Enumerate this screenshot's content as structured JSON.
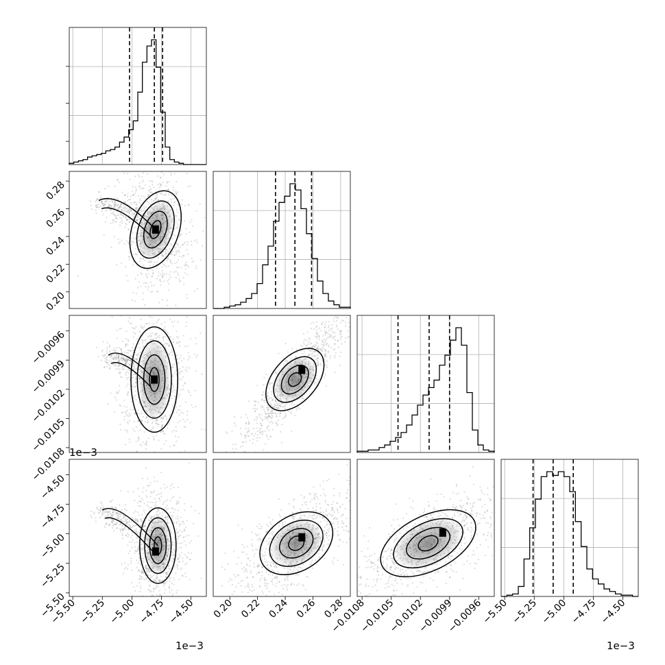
{
  "chart_data": {
    "type": "corner",
    "title": "",
    "grid": true,
    "parameters": [
      {
        "index": 0,
        "range": [
          -5.53,
          -4.37
        ],
        "ticks": [
          -5.5,
          -5.25,
          -5.0,
          -4.75,
          -4.5
        ],
        "tick_labels": [
          "−5.50",
          "−5.25",
          "−5.00",
          "−4.75",
          "−4.50"
        ],
        "offset_label": "1e−3",
        "quantiles": [
          -5.02,
          -4.81,
          -4.74
        ]
      },
      {
        "index": 1,
        "range": [
          0.188,
          0.287
        ],
        "ticks": [
          0.2,
          0.22,
          0.24,
          0.26,
          0.28
        ],
        "tick_labels": [
          "0.20",
          "0.22",
          "0.24",
          "0.26",
          "0.28"
        ],
        "offset_label": "",
        "quantiles": [
          0.233,
          0.247,
          0.259
        ]
      },
      {
        "index": 2,
        "range": [
          -0.01085,
          -0.00944
        ],
        "ticks": [
          -0.0108,
          -0.0105,
          -0.0102,
          -0.0099,
          -0.0096
        ],
        "tick_labels": [
          "−0.0108",
          "−0.0105",
          "−0.0102",
          "−0.0099",
          "−0.0096"
        ],
        "offset_label": "",
        "quantiles": [
          -0.01043,
          -0.01011,
          -0.0099
        ]
      },
      {
        "index": 3,
        "range": [
          -5.53,
          -4.37
        ],
        "ticks": [
          -5.5,
          -5.25,
          -5.0,
          -4.75,
          -4.5
        ],
        "tick_labels": [
          "−5.50",
          "−5.25",
          "−5.00",
          "−4.75",
          "−4.50"
        ],
        "offset_label": "1e−3",
        "quantiles": [
          -5.26,
          -5.09,
          -4.92
        ]
      }
    ],
    "histograms": [
      {
        "param": 0,
        "counts": [
          1,
          2,
          3,
          4,
          6,
          7,
          8,
          9,
          11,
          12,
          14,
          18,
          22,
          28,
          35,
          58,
          82,
          95,
          100,
          78,
          42,
          14,
          4,
          2,
          1,
          0,
          0,
          0,
          0,
          0
        ]
      },
      {
        "param": 1,
        "counts": [
          0,
          0,
          1,
          2,
          3,
          5,
          8,
          12,
          20,
          35,
          50,
          70,
          85,
          90,
          100,
          95,
          80,
          60,
          40,
          22,
          12,
          6,
          3,
          1,
          1
        ]
      },
      {
        "param": 2,
        "counts": [
          1,
          1,
          2,
          2,
          4,
          6,
          9,
          12,
          16,
          22,
          30,
          38,
          46,
          52,
          58,
          70,
          78,
          90,
          100,
          86,
          48,
          18,
          6,
          2,
          1
        ]
      },
      {
        "param": 3,
        "counts": [
          0,
          1,
          2,
          8,
          30,
          55,
          78,
          96,
          100,
          97,
          100,
          96,
          84,
          60,
          40,
          22,
          14,
          10,
          6,
          4,
          2,
          1,
          1,
          0
        ]
      }
    ],
    "pairs": [
      {
        "x": 0,
        "y": 1,
        "ellipse": {
          "mx": -4.8,
          "my": 0.245,
          "sx": 0.09,
          "sy": 0.013,
          "rho": -0.2
        },
        "tail": {
          "x0": -5.28,
          "y0": 0.266,
          "x1": -4.95,
          "y1": 0.254
        },
        "peak": [
          -4.8,
          0.245
        ]
      },
      {
        "x": 0,
        "y": 2,
        "ellipse": {
          "mx": -4.81,
          "my": -0.0101,
          "sx": 0.09,
          "sy": 0.00024,
          "rho": 0.0
        },
        "tail": {
          "x0": -5.2,
          "y0": -0.00985,
          "x1": -4.95,
          "y1": -0.00995
        },
        "peak": [
          -4.81,
          -0.0101
        ]
      },
      {
        "x": 1,
        "y": 2,
        "ellipse": {
          "mx": 0.247,
          "my": -0.0101,
          "sx": 0.012,
          "sy": 0.00022,
          "rho": 0.9
        },
        "peak": [
          0.252,
          -0.01
        ]
      },
      {
        "x": 0,
        "y": 3,
        "ellipse": {
          "mx": -4.78,
          "my": -5.1,
          "sx": 0.07,
          "sy": 0.14,
          "rho": 0.0
        },
        "tail": {
          "x0": -5.25,
          "y0": -4.8,
          "x1": -4.98,
          "y1": -4.95
        },
        "peak": [
          -4.8,
          -5.15
        ]
      },
      {
        "x": 1,
        "y": 3,
        "ellipse": {
          "mx": 0.248,
          "my": -5.08,
          "sx": 0.013,
          "sy": 0.14,
          "rho": 0.7
        },
        "peak": [
          0.252,
          -5.03
        ]
      },
      {
        "x": 2,
        "y": 3,
        "ellipse": {
          "mx": -0.01012,
          "my": -5.08,
          "sx": 0.00024,
          "sy": 0.14,
          "rho": 0.7
        },
        "peak": [
          -0.00997,
          -4.99
        ]
      }
    ],
    "scientific_offset_labels": [
      "1e−3",
      "1e−3",
      "1e−3"
    ]
  }
}
